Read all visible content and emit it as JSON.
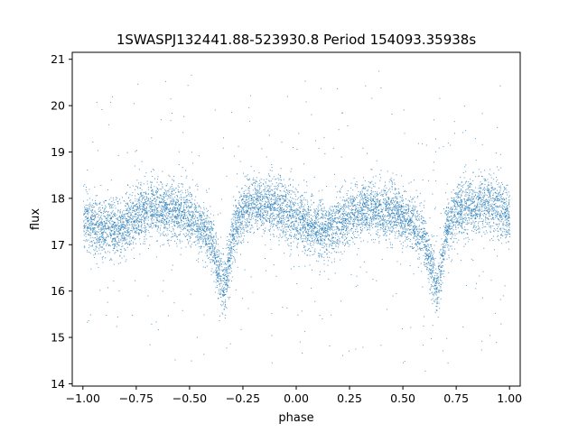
{
  "chart_data": {
    "type": "scatter",
    "title": "1SWASPJ132441.88-523930.8 Period 154093.35938s",
    "xlabel": "phase",
    "ylabel": "flux",
    "xlim": [
      -1.05,
      1.05
    ],
    "ylim": [
      13.95,
      21.15
    ],
    "x_ticks": [
      -1.0,
      -0.75,
      -0.5,
      -0.25,
      0.0,
      0.25,
      0.5,
      0.75,
      1.0
    ],
    "x_tick_labels": [
      "−1.00",
      "−0.75",
      "−0.50",
      "−0.25",
      "0.00",
      "0.25",
      "0.50",
      "0.75",
      "1.00"
    ],
    "y_ticks": [
      14,
      15,
      16,
      17,
      18,
      19,
      20,
      21
    ],
    "y_tick_labels": [
      "14",
      "15",
      "16",
      "17",
      "18",
      "19",
      "20",
      "21"
    ],
    "grid": false,
    "legend": "none",
    "marker_color": "#1f77b4",
    "series": [
      {
        "x": [
          -1.0,
          -0.95,
          -0.9,
          -0.85,
          -0.8,
          -0.75,
          -0.7,
          -0.65,
          -0.6,
          -0.55,
          -0.5,
          -0.45,
          -0.4,
          -0.375,
          -0.35,
          -0.34,
          -0.325,
          -0.3,
          -0.25,
          -0.2,
          -0.15,
          -0.1,
          -0.05,
          0.0,
          0.05,
          0.1,
          0.15,
          0.2,
          0.25,
          0.3,
          0.35,
          0.4,
          0.45,
          0.5,
          0.55,
          0.6,
          0.625,
          0.65,
          0.66,
          0.675,
          0.7,
          0.75,
          0.8,
          0.85,
          0.9,
          0.95,
          1.0
        ],
        "y": [
          17.6,
          17.45,
          17.35,
          17.3,
          17.45,
          17.6,
          17.75,
          17.8,
          17.75,
          17.7,
          17.6,
          17.45,
          17.1,
          16.6,
          16.15,
          16.05,
          16.4,
          17.3,
          17.75,
          17.85,
          17.9,
          17.85,
          17.75,
          17.6,
          17.45,
          17.35,
          17.3,
          17.45,
          17.6,
          17.75,
          17.8,
          17.75,
          17.7,
          17.6,
          17.45,
          17.1,
          16.6,
          16.15,
          16.05,
          16.4,
          17.3,
          17.75,
          17.85,
          17.9,
          17.85,
          17.75,
          17.6
        ]
      }
    ]
  }
}
